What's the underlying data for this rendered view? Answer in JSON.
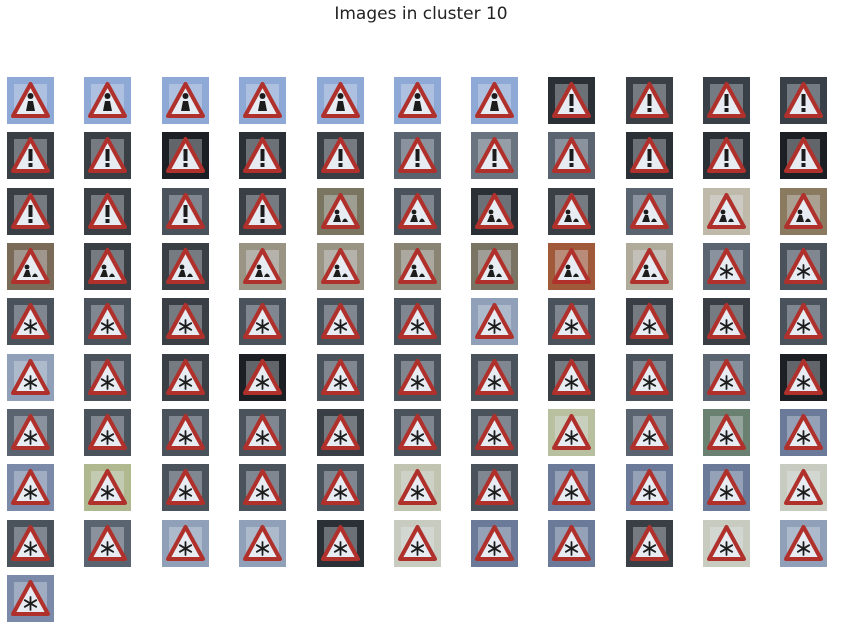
{
  "figure": {
    "title": "Images in cluster 10"
  },
  "colors": {
    "sign_red": "#b0302c",
    "sign_fill": "#e6ecf2",
    "glyph": "#1c1c1c"
  },
  "thumbnails": [
    {
      "bg": "#8fa9d6",
      "sign": "pedestrian"
    },
    {
      "bg": "#8fa9d6",
      "sign": "pedestrian"
    },
    {
      "bg": "#8fa9d6",
      "sign": "pedestrian"
    },
    {
      "bg": "#8fa9d6",
      "sign": "pedestrian"
    },
    {
      "bg": "#8fa9d6",
      "sign": "pedestrian"
    },
    {
      "bg": "#8fa9d6",
      "sign": "pedestrian"
    },
    {
      "bg": "#8fa9d6",
      "sign": "pedestrian"
    },
    {
      "bg": "#2b2f36",
      "sign": "exclamation"
    },
    {
      "bg": "#3a3f46",
      "sign": "exclamation"
    },
    {
      "bg": "#3a4048",
      "sign": "exclamation"
    },
    {
      "bg": "#3a4048",
      "sign": "exclamation"
    },
    {
      "bg": "#3a3f46",
      "sign": "exclamation"
    },
    {
      "bg": "#3a3f46",
      "sign": "exclamation"
    },
    {
      "bg": "#1c1f24",
      "sign": "exclamation"
    },
    {
      "bg": "#2b2f36",
      "sign": "exclamation"
    },
    {
      "bg": "#3a3f46",
      "sign": "exclamation"
    },
    {
      "bg": "#5a6470",
      "sign": "exclamation"
    },
    {
      "bg": "#6a7480",
      "sign": "exclamation"
    },
    {
      "bg": "#5a6470",
      "sign": "exclamation"
    },
    {
      "bg": "#2b2f36",
      "sign": "exclamation"
    },
    {
      "bg": "#2b2f36",
      "sign": "exclamation"
    },
    {
      "bg": "#1c1f24",
      "sign": "exclamation"
    },
    {
      "bg": "#3a3f46",
      "sign": "exclamation"
    },
    {
      "bg": "#3a3f46",
      "sign": "exclamation"
    },
    {
      "bg": "#4a525c",
      "sign": "exclamation"
    },
    {
      "bg": "#3a3f46",
      "sign": "exclamation"
    },
    {
      "bg": "#7a7560",
      "sign": "roadwork"
    },
    {
      "bg": "#4a525c",
      "sign": "roadwork"
    },
    {
      "bg": "#2b2f36",
      "sign": "roadwork"
    },
    {
      "bg": "#3a3f46",
      "sign": "roadwork"
    },
    {
      "bg": "#5a6470",
      "sign": "roadwork"
    },
    {
      "bg": "#bfb9aa",
      "sign": "roadwork"
    },
    {
      "bg": "#8a7a60",
      "sign": "roadwork"
    },
    {
      "bg": "#7a6a58",
      "sign": "roadwork"
    },
    {
      "bg": "#3a3f46",
      "sign": "roadwork"
    },
    {
      "bg": "#3a3f46",
      "sign": "roadwork"
    },
    {
      "bg": "#9a9484",
      "sign": "roadwork"
    },
    {
      "bg": "#9a9484",
      "sign": "roadwork"
    },
    {
      "bg": "#8a8474",
      "sign": "roadwork"
    },
    {
      "bg": "#7a7464",
      "sign": "roadwork"
    },
    {
      "bg": "#a05a3a",
      "sign": "roadwork"
    },
    {
      "bg": "#b0aa9a",
      "sign": "roadwork"
    },
    {
      "bg": "#5a6470",
      "sign": "snowflake"
    },
    {
      "bg": "#4a525c",
      "sign": "snowflake"
    },
    {
      "bg": "#4a525c",
      "sign": "snowflake"
    },
    {
      "bg": "#4a525c",
      "sign": "snowflake"
    },
    {
      "bg": "#3a3f46",
      "sign": "snowflake"
    },
    {
      "bg": "#4a525c",
      "sign": "snowflake"
    },
    {
      "bg": "#4a525c",
      "sign": "snowflake"
    },
    {
      "bg": "#4a525c",
      "sign": "snowflake"
    },
    {
      "bg": "#8fa0b8",
      "sign": "snowflake"
    },
    {
      "bg": "#4a525c",
      "sign": "snowflake"
    },
    {
      "bg": "#3a3f46",
      "sign": "snowflake"
    },
    {
      "bg": "#3a3f46",
      "sign": "snowflake"
    },
    {
      "bg": "#4a525c",
      "sign": "snowflake"
    },
    {
      "bg": "#8fa0b8",
      "sign": "snowflake"
    },
    {
      "bg": "#4a525c",
      "sign": "snowflake"
    },
    {
      "bg": "#3a3f46",
      "sign": "snowflake"
    },
    {
      "bg": "#1c1f24",
      "sign": "snowflake"
    },
    {
      "bg": "#4a525c",
      "sign": "snowflake"
    },
    {
      "bg": "#4a525c",
      "sign": "snowflake"
    },
    {
      "bg": "#4a525c",
      "sign": "snowflake"
    },
    {
      "bg": "#3a3f46",
      "sign": "snowflake"
    },
    {
      "bg": "#4a525c",
      "sign": "snowflake"
    },
    {
      "bg": "#5a6470",
      "sign": "snowflake"
    },
    {
      "bg": "#1c1f24",
      "sign": "snowflake"
    },
    {
      "bg": "#5a6470",
      "sign": "snowflake"
    },
    {
      "bg": "#4a525c",
      "sign": "snowflake"
    },
    {
      "bg": "#4a525c",
      "sign": "snowflake"
    },
    {
      "bg": "#4a525c",
      "sign": "snowflake"
    },
    {
      "bg": "#3a3f46",
      "sign": "snowflake"
    },
    {
      "bg": "#4a525c",
      "sign": "snowflake"
    },
    {
      "bg": "#4a525c",
      "sign": "snowflake"
    },
    {
      "bg": "#b8c0a0",
      "sign": "snowflake"
    },
    {
      "bg": "#5a6470",
      "sign": "snowflake"
    },
    {
      "bg": "#6a8070",
      "sign": "snowflake"
    },
    {
      "bg": "#6a7a98",
      "sign": "snowflake"
    },
    {
      "bg": "#7a8aa8",
      "sign": "snowflake"
    },
    {
      "bg": "#b0b890",
      "sign": "snowflake"
    },
    {
      "bg": "#4a525c",
      "sign": "snowflake"
    },
    {
      "bg": "#4a525c",
      "sign": "snowflake"
    },
    {
      "bg": "#4a525c",
      "sign": "snowflake"
    },
    {
      "bg": "#c0c4b0",
      "sign": "snowflake"
    },
    {
      "bg": "#4a525c",
      "sign": "snowflake"
    },
    {
      "bg": "#6a7a98",
      "sign": "snowflake"
    },
    {
      "bg": "#6a7a98",
      "sign": "snowflake"
    },
    {
      "bg": "#6a7a98",
      "sign": "snowflake"
    },
    {
      "bg": "#c8ccc0",
      "sign": "snowflake"
    },
    {
      "bg": "#4a525c",
      "sign": "snowflake"
    },
    {
      "bg": "#5a6470",
      "sign": "snowflake"
    },
    {
      "bg": "#8fa0b8",
      "sign": "snowflake"
    },
    {
      "bg": "#8fa0b8",
      "sign": "snowflake"
    },
    {
      "bg": "#2b2f36",
      "sign": "snowflake"
    },
    {
      "bg": "#c8ccc0",
      "sign": "snowflake"
    },
    {
      "bg": "#6a7a98",
      "sign": "snowflake"
    },
    {
      "bg": "#6a7a98",
      "sign": "snowflake"
    },
    {
      "bg": "#3a3f46",
      "sign": "snowflake"
    },
    {
      "bg": "#c8ccc0",
      "sign": "snowflake"
    },
    {
      "bg": "#8fa0b8",
      "sign": "snowflake"
    },
    {
      "bg": "#7a8aa8",
      "sign": "snowflake"
    }
  ]
}
